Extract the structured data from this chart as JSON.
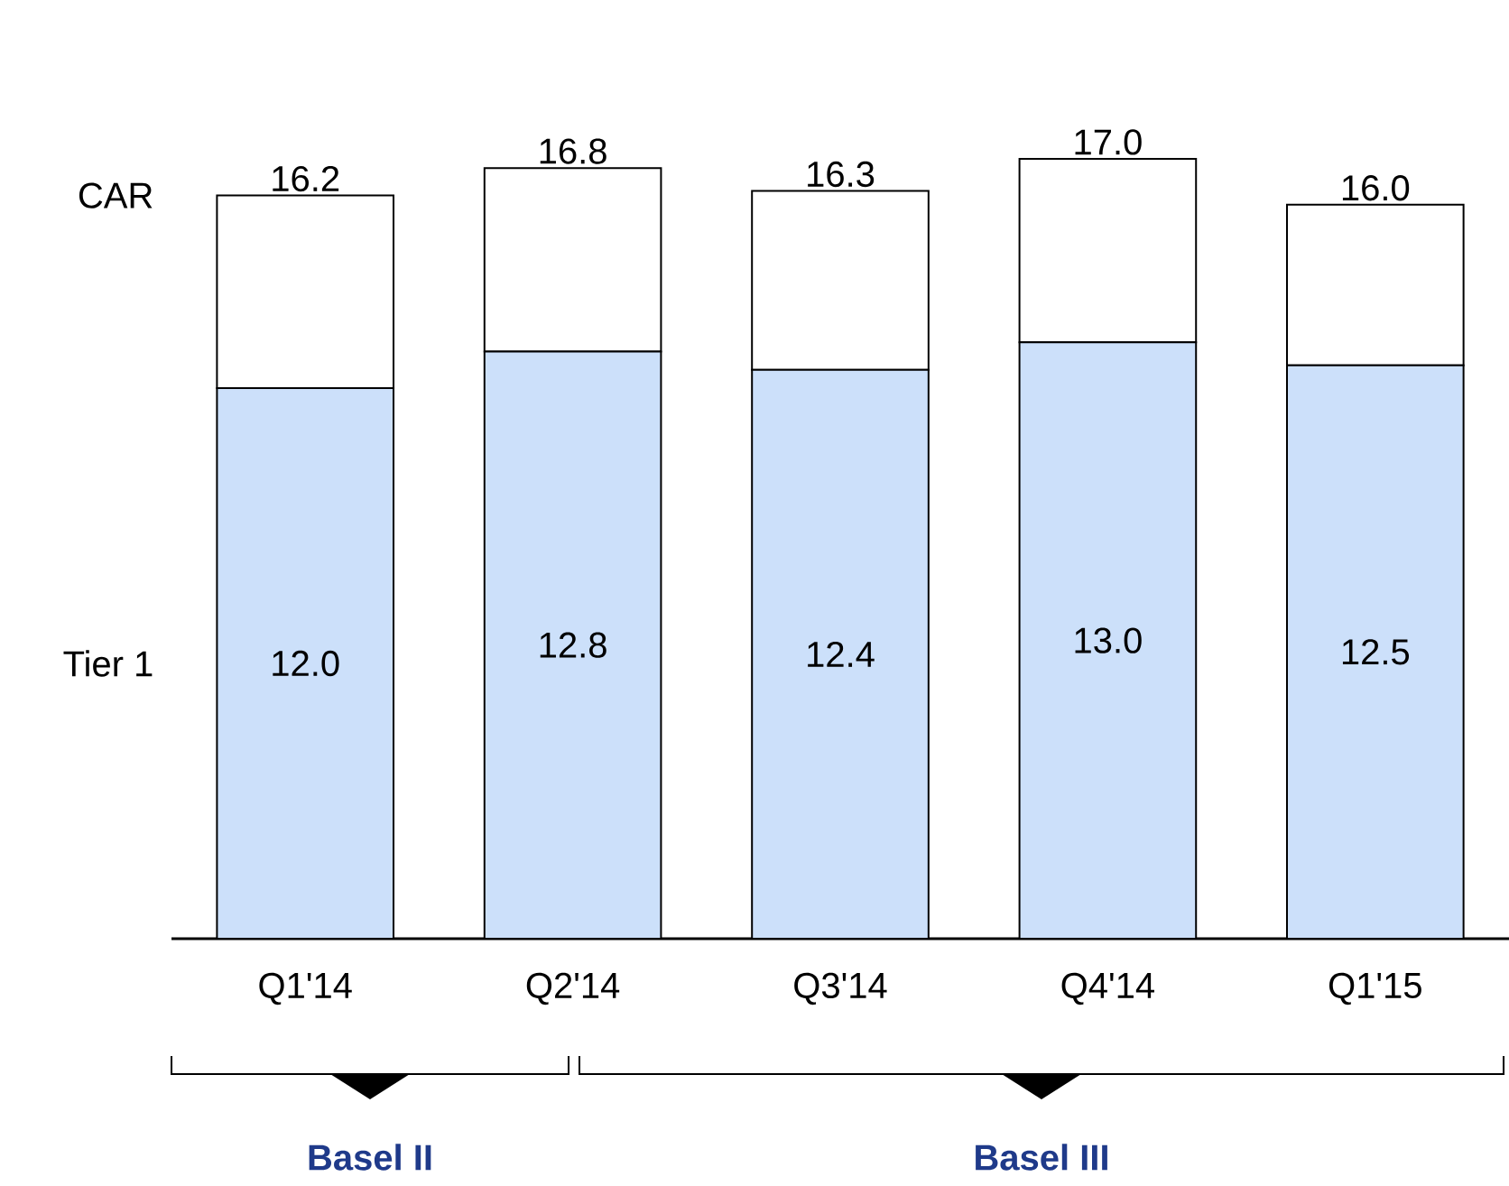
{
  "chart_data": {
    "type": "bar",
    "stacked": true,
    "categories": [
      "Q1'14",
      "Q2'14",
      "Q3'14",
      "Q4'14",
      "Q1'15"
    ],
    "series": [
      {
        "name": "Tier 1",
        "color": "#cce0fa",
        "values": [
          12.0,
          12.8,
          12.4,
          13.0,
          12.5
        ],
        "value_labels": [
          "12.0",
          "12.8",
          "12.4",
          "13.0",
          "12.5"
        ]
      },
      {
        "name": "CAR",
        "color": "#ffffff",
        "values": [
          4.2,
          4.0,
          3.9,
          4.0,
          3.5
        ]
      }
    ],
    "totals": [
      "16.2",
      "16.8",
      "16.3",
      "17.0",
      "16.0"
    ],
    "tick_labels": "x",
    "annotations": [
      "Basel II",
      "Basel III"
    ]
  }
}
